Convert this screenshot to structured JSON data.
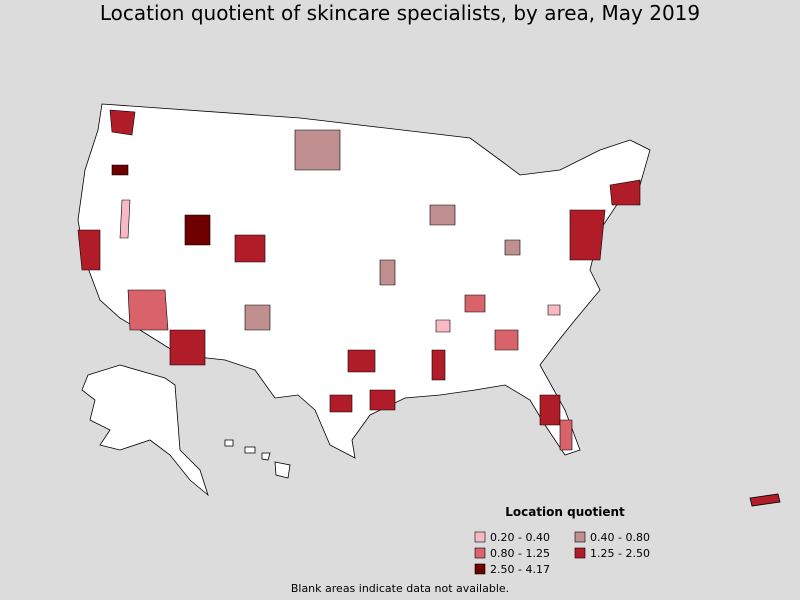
{
  "title": "Location quotient of skincare specialists, by area, May 2019",
  "legend": {
    "title": "Location quotient",
    "items": [
      {
        "label": "0.20 - 0.40",
        "color": "#f7b9c4"
      },
      {
        "label": "0.40 - 0.80",
        "color": "#c09090"
      },
      {
        "label": "0.80 - 1.25",
        "color": "#d9636b"
      },
      {
        "label": "1.25 - 2.50",
        "color": "#b01c28"
      },
      {
        "label": "2.50 - 4.17",
        "color": "#6e0000"
      }
    ]
  },
  "footnote": "Blank areas indicate data not available."
}
